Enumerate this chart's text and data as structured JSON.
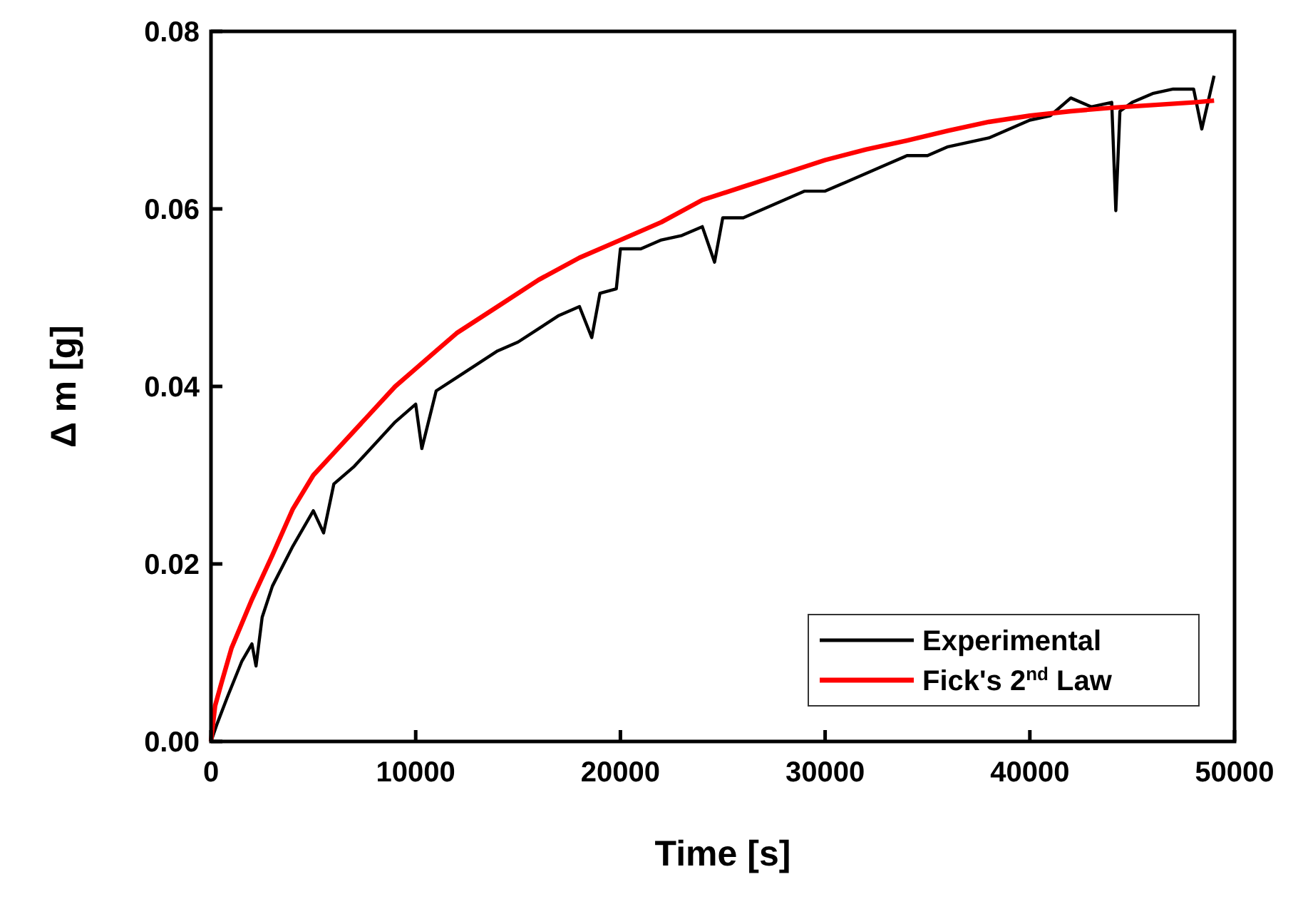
{
  "chart_data": {
    "type": "line",
    "xlabel": "Time [s]",
    "ylabel": "Δ m [g]",
    "xlim": [
      0,
      50000
    ],
    "xticks": [
      0,
      10000,
      20000,
      30000,
      40000,
      50000
    ],
    "ylim": [
      0,
      0.08
    ],
    "yticks": [
      {
        "value": 0,
        "label": "0.00"
      },
      {
        "value": 0.02,
        "label": "0.02"
      },
      {
        "value": 0.04,
        "label": "0.04"
      },
      {
        "value": 0.06,
        "label": "0.06"
      },
      {
        "value": 0.08,
        "label": "0.08"
      }
    ],
    "grid": false,
    "legend": "bottom right",
    "marker": "none",
    "line_style": "solid",
    "series": [
      {
        "name": "Experimental",
        "color": "#000000",
        "x": [
          0,
          300,
          800,
          1500,
          2000,
          2200,
          2500,
          3000,
          4000,
          5000,
          5500,
          6000,
          7000,
          8000,
          9000,
          10000,
          10300,
          11000,
          12000,
          13000,
          14000,
          15000,
          16000,
          17000,
          18000,
          18600,
          19000,
          19800,
          20000,
          21000,
          22000,
          23000,
          24000,
          24600,
          25000,
          26000,
          27000,
          28000,
          29000,
          30000,
          31000,
          32000,
          33000,
          34000,
          35000,
          36000,
          37000,
          38000,
          39000,
          40000,
          41000,
          42000,
          43000,
          44000,
          44200,
          44400,
          45000,
          46000,
          47000,
          48000,
          48400,
          49000
        ],
        "values": [
          0,
          0.002,
          0.005,
          0.009,
          0.011,
          0.0085,
          0.014,
          0.0175,
          0.022,
          0.026,
          0.0235,
          0.029,
          0.031,
          0.0335,
          0.036,
          0.038,
          0.033,
          0.0395,
          0.041,
          0.0425,
          0.044,
          0.045,
          0.0465,
          0.048,
          0.049,
          0.0455,
          0.0505,
          0.051,
          0.0555,
          0.0555,
          0.0565,
          0.057,
          0.058,
          0.054,
          0.059,
          0.059,
          0.06,
          0.061,
          0.062,
          0.062,
          0.063,
          0.064,
          0.065,
          0.066,
          0.066,
          0.067,
          0.0675,
          0.068,
          0.069,
          0.07,
          0.0705,
          0.0725,
          0.0715,
          0.072,
          0.0598,
          0.071,
          0.072,
          0.073,
          0.0735,
          0.0735,
          0.069,
          0.075
        ]
      },
      {
        "name": "Fick's 2$^{nd}$ Law",
        "color": "#ff0000",
        "x": [
          0,
          200,
          500,
          1000,
          2000,
          3000,
          4000,
          5000,
          6000,
          7000,
          8000,
          9000,
          10000,
          11000,
          12000,
          14000,
          16000,
          18000,
          20000,
          22000,
          24000,
          26000,
          28000,
          30000,
          32000,
          34000,
          36000,
          38000,
          40000,
          42000,
          44000,
          46000,
          48000,
          49000
        ],
        "values": [
          0,
          0.004,
          0.0065,
          0.0105,
          0.016,
          0.021,
          0.0262,
          0.03,
          0.0325,
          0.035,
          0.0375,
          0.04,
          0.042,
          0.044,
          0.046,
          0.049,
          0.052,
          0.0545,
          0.0565,
          0.0585,
          0.061,
          0.0625,
          0.064,
          0.0655,
          0.0667,
          0.0677,
          0.0688,
          0.0698,
          0.0705,
          0.071,
          0.0714,
          0.0717,
          0.072,
          0.0722
        ]
      }
    ]
  }
}
